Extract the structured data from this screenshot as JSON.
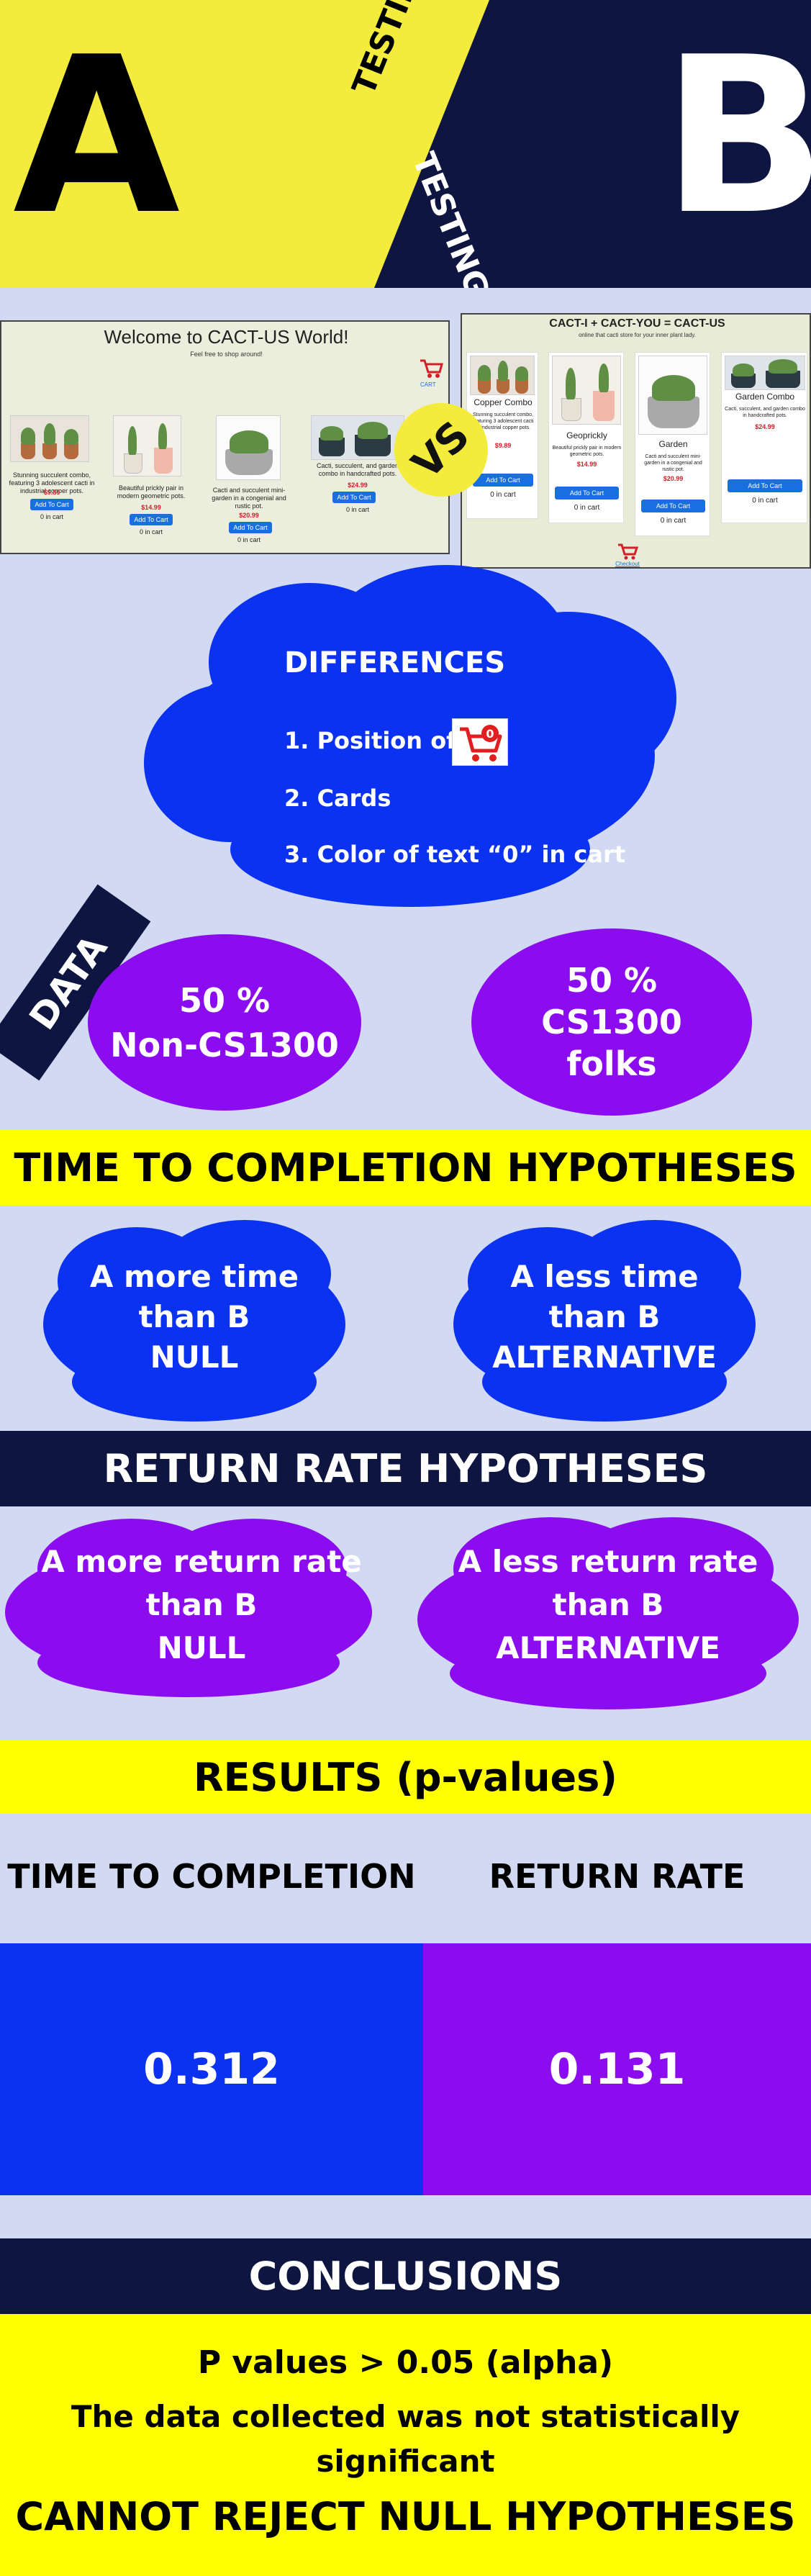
{
  "header": {
    "letter_a": "A",
    "letter_b": "B",
    "testing_top": "TESTING",
    "testing_bottom": "TESTING",
    "colors": {
      "yellow": "#f4ec3c",
      "navy": "#0e1540"
    }
  },
  "version_a": {
    "title": "Welcome to CACT-US World!",
    "subtitle": "Feel free to shop around!",
    "cart_label": "CART",
    "cart_icon": "cart-icon",
    "products": [
      {
        "desc": "Stunning succulent combo, featuring 3 adolescent cacti in industrial copper pots.",
        "price": "$9.89",
        "button": "Add To Cart",
        "in_cart": "0 in cart"
      },
      {
        "desc": "Beautiful prickly pair in modern geometric pots.",
        "price": "$14.99",
        "button": "Add To Cart",
        "in_cart": "0 in cart"
      },
      {
        "desc": "Cacti and succulent mini-garden in a congenial and rustic pot.",
        "price": "$20.99",
        "button": "Add To Cart",
        "in_cart": "0 in cart"
      },
      {
        "desc": "Cacti, succulent, and garden combo in handcrafted pots.",
        "price": "$24.99",
        "button": "Add To Cart",
        "in_cart": "0 in cart"
      }
    ]
  },
  "vs_badge": "VS",
  "version_b": {
    "title": "CACT-I + CACT-YOU = CACT-US",
    "subtitle": "online that cacti store for your inner plant lady.",
    "checkout_label": "Checkout",
    "products": [
      {
        "name": "Copper Combo",
        "desc": "Stunning succulent combo, featuring 3 adolescent cacti in industrial copper pots.",
        "price": "$9.89",
        "button": "Add To Cart",
        "in_cart": "0 in cart"
      },
      {
        "name": "Geoprickly",
        "desc": "Beautiful prickly pair in modern geometric pots.",
        "price": "$14.99",
        "button": "Add To Cart",
        "in_cart": "0 in cart"
      },
      {
        "name": "Garden",
        "desc": "Cacti and succulent mini-garden in a congenial and rustic pot.",
        "price": "$20.99",
        "button": "Add To Cart",
        "in_cart": "0 in cart"
      },
      {
        "name": "Garden Combo",
        "desc": "Cacti, succulent, and garden combo in handcrafted pots.",
        "price": "$24.99",
        "button": "Add To Cart",
        "in_cart": "0 in cart"
      }
    ]
  },
  "differences": {
    "title": "DIFFERENCES",
    "item1": "1. Position of",
    "item1_icon": "cart-icon",
    "cart_badge": "0",
    "item2": "2. Cards",
    "item3": "3. Color of text “0” in cart"
  },
  "data_section": {
    "tag": "DATA",
    "group_a_line1": "50 %",
    "group_a_line2": "Non-CS1300",
    "group_b_line1": "50 %",
    "group_b_line2": "CS1300",
    "group_b_line3": "folks"
  },
  "ttc": {
    "banner": "TIME TO COMPLETION HYPOTHESES",
    "null_line1": "A more time",
    "null_line2": "than B",
    "null_line3": "NULL",
    "alt_line1": "A less time",
    "alt_line2": "than B",
    "alt_line3": "ALTERNATIVE"
  },
  "rr": {
    "banner": "RETURN RATE HYPOTHESES",
    "null_line1": "A more return rate",
    "null_line2": "than B",
    "null_line3": "NULL",
    "alt_line1": "A less return rate",
    "alt_line2": "than B",
    "alt_line3": "ALTERNATIVE"
  },
  "results": {
    "banner": "RESULTS (p-values)",
    "col1_label": "TIME TO COMPLETION",
    "col2_label": "RETURN RATE",
    "col1_value": "0.312",
    "col2_value": "0.131"
  },
  "conclusions": {
    "banner": "CONCLUSIONS",
    "line1": "P values  >  0.05 (alpha)",
    "line2": "The data collected was not statistically",
    "line3": "significant",
    "line4": "CANNOT REJECT NULL HYPOTHESES"
  },
  "colors": {
    "blue": "#0a32f0",
    "purple": "#8c0cf0",
    "yellow": "#ffff00",
    "navy": "#0e1540",
    "background": "#d2d9f2"
  }
}
